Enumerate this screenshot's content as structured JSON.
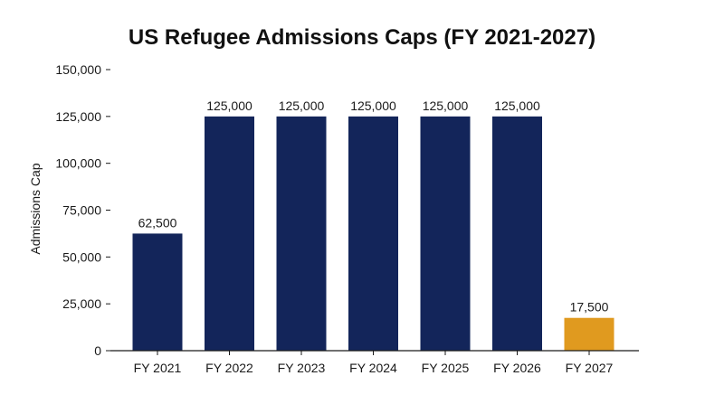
{
  "chart_data": {
    "type": "bar",
    "title": "US Refugee Admissions Caps (FY 2021-2027)",
    "xlabel": "",
    "ylabel": "Admissions Cap",
    "categories": [
      "FY 2021",
      "FY 2022",
      "FY 2023",
      "FY 2024",
      "FY 2025",
      "FY 2026",
      "FY 2027"
    ],
    "values": [
      62500,
      125000,
      125000,
      125000,
      125000,
      125000,
      17500
    ],
    "data_labels": [
      "62,500",
      "125,000",
      "125,000",
      "125,000",
      "125,000",
      "125,000",
      "17,500"
    ],
    "ylim": [
      0,
      150000
    ],
    "yticks": [
      0,
      25000,
      50000,
      75000,
      100000,
      125000,
      150000
    ],
    "ytick_labels": [
      "0",
      "25,000",
      "50,000",
      "75,000",
      "100,000",
      "125,000",
      "150,000"
    ],
    "bar_colors": [
      "#13255A",
      "#13255A",
      "#13255A",
      "#13255A",
      "#13255A",
      "#13255A",
      "#E09A1F"
    ],
    "grid": false,
    "legend": "none"
  }
}
